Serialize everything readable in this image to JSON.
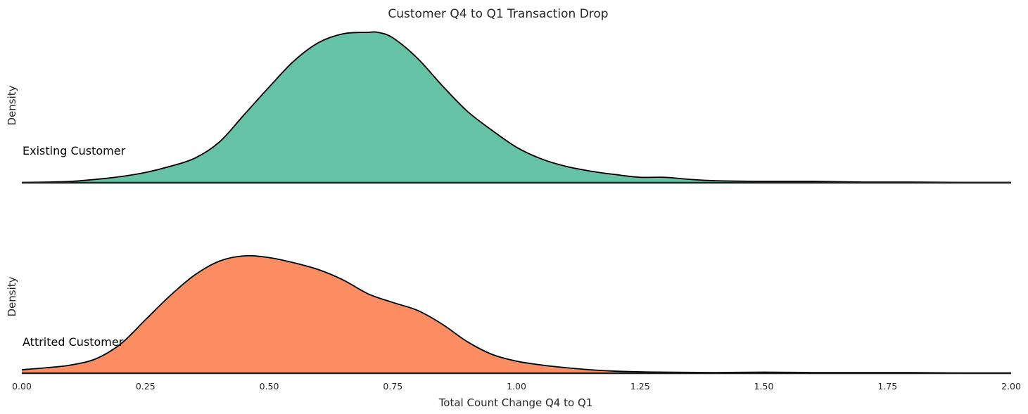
{
  "chart_data": {
    "type": "ridgeline-density",
    "title": "Customer Q4 to Q1 Transaction Drop",
    "xlabel": "Total Count Change Q4 to Q1",
    "ylabel": "Density",
    "xlim": [
      0.0,
      2.0
    ],
    "xticks": [
      "0.00",
      "0.25",
      "0.50",
      "0.75",
      "1.00",
      "1.25",
      "1.50",
      "1.75",
      "2.00"
    ],
    "grid": false,
    "series": [
      {
        "name": "Existing Customer",
        "color": "#66c2a5",
        "ymax": 2.2,
        "x": [
          0.0,
          0.05,
          0.1,
          0.15,
          0.2,
          0.25,
          0.3,
          0.35,
          0.4,
          0.45,
          0.5,
          0.55,
          0.6,
          0.65,
          0.7,
          0.72,
          0.75,
          0.8,
          0.85,
          0.9,
          0.95,
          1.0,
          1.05,
          1.1,
          1.15,
          1.2,
          1.25,
          1.3,
          1.35,
          1.4,
          1.5,
          1.6,
          1.7,
          1.8,
          1.9,
          2.0
        ],
        "y": [
          0.005,
          0.01,
          0.02,
          0.05,
          0.09,
          0.15,
          0.24,
          0.36,
          0.6,
          1.0,
          1.4,
          1.78,
          2.05,
          2.18,
          2.2,
          2.2,
          2.12,
          1.82,
          1.42,
          1.05,
          0.77,
          0.52,
          0.35,
          0.24,
          0.17,
          0.12,
          0.08,
          0.08,
          0.05,
          0.03,
          0.02,
          0.02,
          0.01,
          0.01,
          0.005,
          0.005
        ]
      },
      {
        "name": "Attrited Customer",
        "color": "#fc8d62",
        "ymax": 3.4,
        "x": [
          0.0,
          0.05,
          0.1,
          0.15,
          0.2,
          0.25,
          0.3,
          0.35,
          0.4,
          0.45,
          0.5,
          0.55,
          0.6,
          0.65,
          0.7,
          0.75,
          0.8,
          0.85,
          0.9,
          0.95,
          1.0,
          1.05,
          1.1,
          1.15,
          1.2,
          1.25,
          1.3,
          1.4,
          1.5,
          1.6,
          1.7,
          1.8,
          1.9,
          2.0
        ],
        "y": [
          0.1,
          0.16,
          0.24,
          0.42,
          0.85,
          1.55,
          2.25,
          2.85,
          3.25,
          3.4,
          3.35,
          3.2,
          3.0,
          2.7,
          2.3,
          2.05,
          1.82,
          1.42,
          0.92,
          0.55,
          0.35,
          0.24,
          0.16,
          0.1,
          0.06,
          0.04,
          0.03,
          0.02,
          0.03,
          0.02,
          0.02,
          0.02,
          0.01,
          0.01
        ]
      }
    ]
  }
}
